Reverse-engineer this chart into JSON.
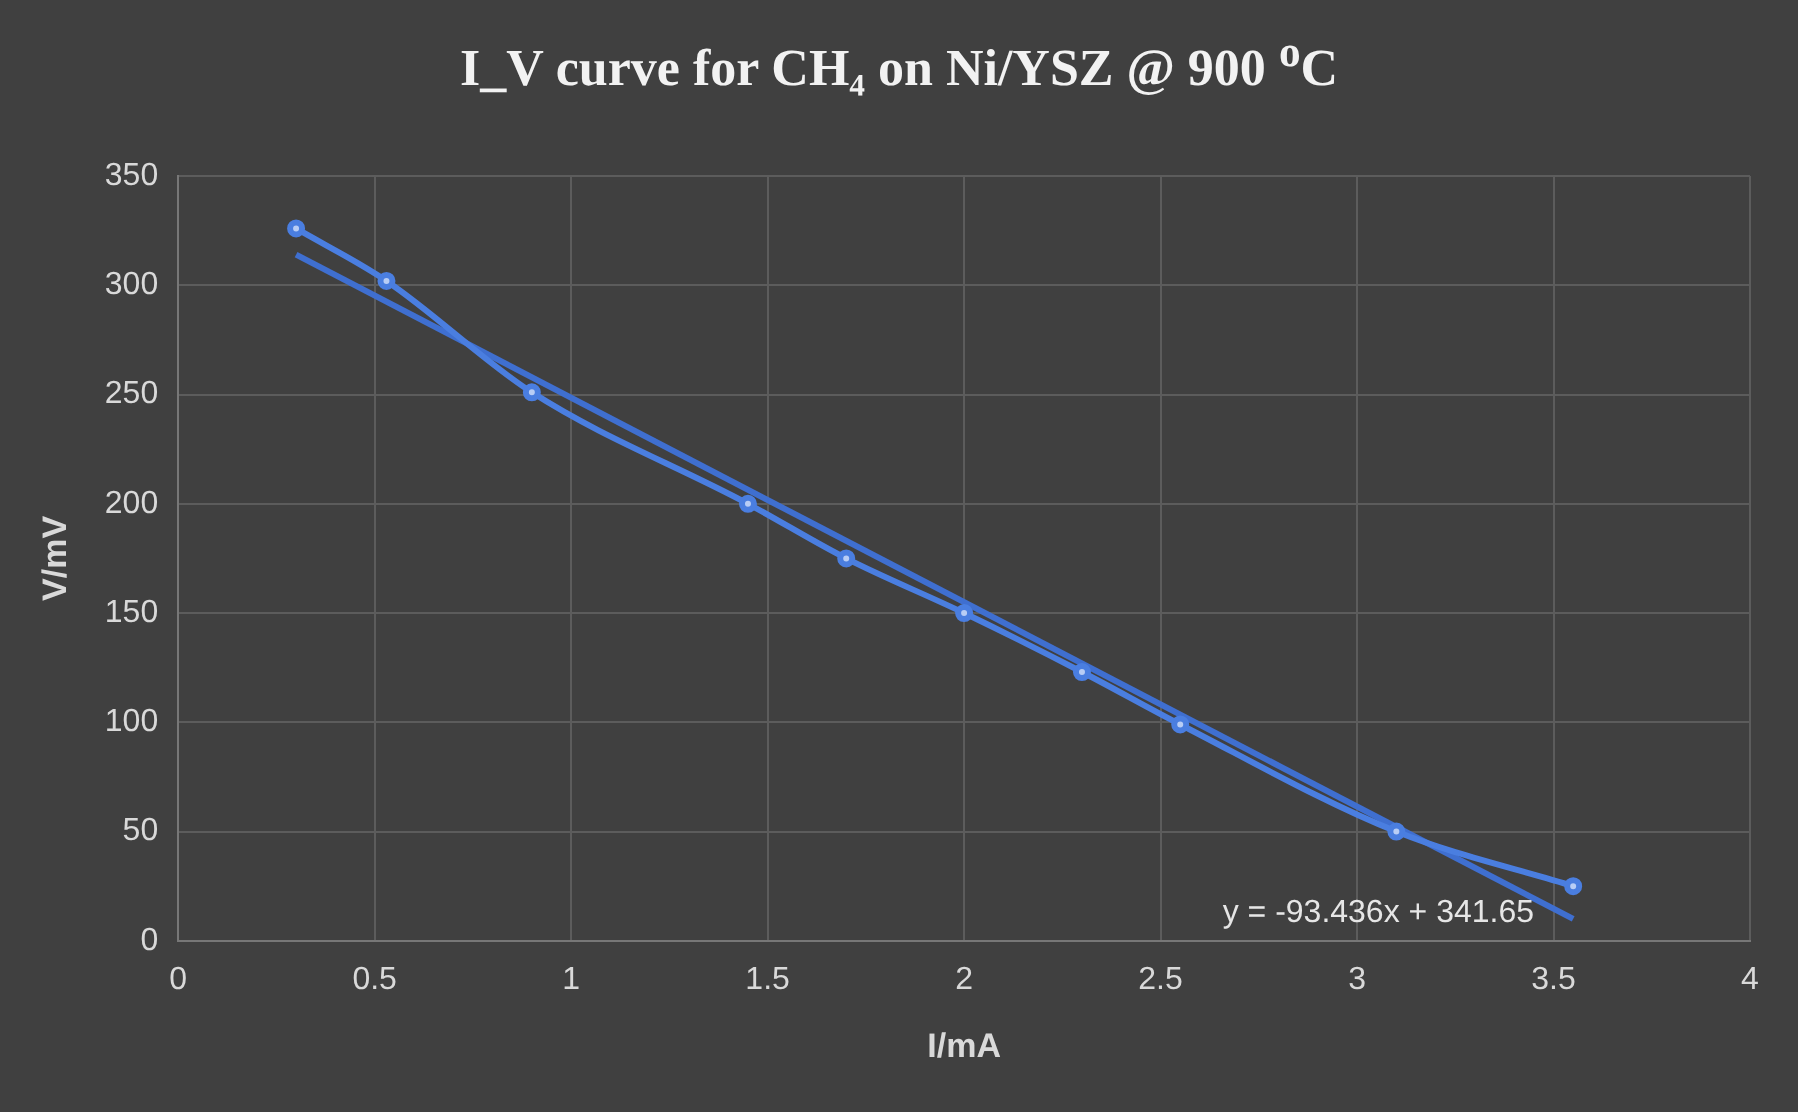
{
  "chart_data": {
    "type": "line",
    "title": "I_V curve for CH₄ on Ni/YSZ @ 900 $^{o}$C",
    "xlabel": "I/mA",
    "ylabel": "V/mV",
    "xlim": [
      0,
      4
    ],
    "xticks": [
      0,
      0.5,
      1,
      1.5,
      2,
      2.5,
      3,
      3.5,
      4
    ],
    "ylim": [
      0,
      350
    ],
    "yticks": [
      0,
      50,
      100,
      150,
      200,
      250,
      300,
      350
    ],
    "grid": true,
    "marker": "circle",
    "series": [
      {
        "color": "#4a7ee0",
        "x": [
          0.3,
          0.53,
          0.9,
          1.45,
          1.7,
          2.0,
          2.3,
          2.55,
          3.1,
          3.55
        ],
        "values": [
          326,
          302,
          251,
          200,
          175,
          150,
          123,
          99,
          50,
          25
        ]
      },
      {
        "marker": "none",
        "color": "#3f6fd0",
        "x": [
          0.3,
          3.55
        ],
        "values": [
          314,
          10
        ]
      }
    ],
    "annotations": [
      "y = -93.436x + 341.65"
    ]
  }
}
